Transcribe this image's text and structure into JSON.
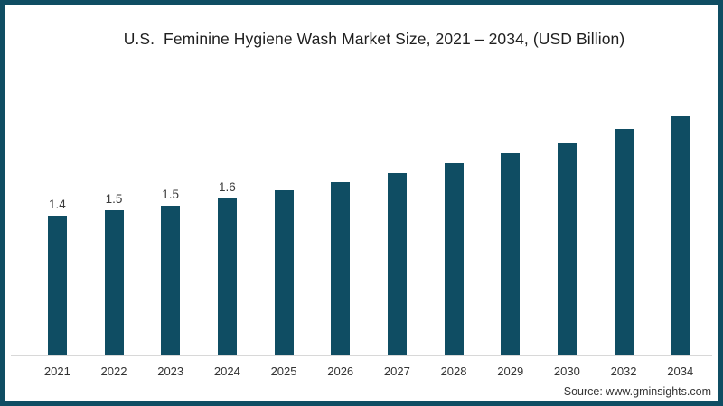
{
  "chart_data": {
    "type": "bar",
    "title": "U.S.  Feminine Hygiene Wash Market Size, 2021 – 2034, (USD Billion)",
    "categories": [
      "2021",
      "2022",
      "2023",
      "2024",
      "2025",
      "2026",
      "2027",
      "2028",
      "2029",
      "2030",
      "2032",
      "2034"
    ],
    "values": [
      1.4,
      1.45,
      1.5,
      1.57,
      1.65,
      1.73,
      1.82,
      1.92,
      2.02,
      2.13,
      2.27,
      2.39
    ],
    "data_labels": [
      "1.4",
      "1.5",
      "1.5",
      "1.6",
      "",
      "",
      "",
      "",
      "",
      "",
      "",
      ""
    ],
    "xlabel": "",
    "ylabel": "",
    "ylim": [
      0,
      2.6
    ],
    "grid": false,
    "legend": false,
    "y_axis_visible": false,
    "bar_color": "#0f4d63",
    "axis_line_color": "#d8d8d8",
    "label_color": "#3a3a3a",
    "title_color": "#1f1f1f"
  },
  "source": "Source: www.gminsights.com",
  "frame": {
    "border_color": "#0f4d63",
    "background": "#ffffff"
  }
}
